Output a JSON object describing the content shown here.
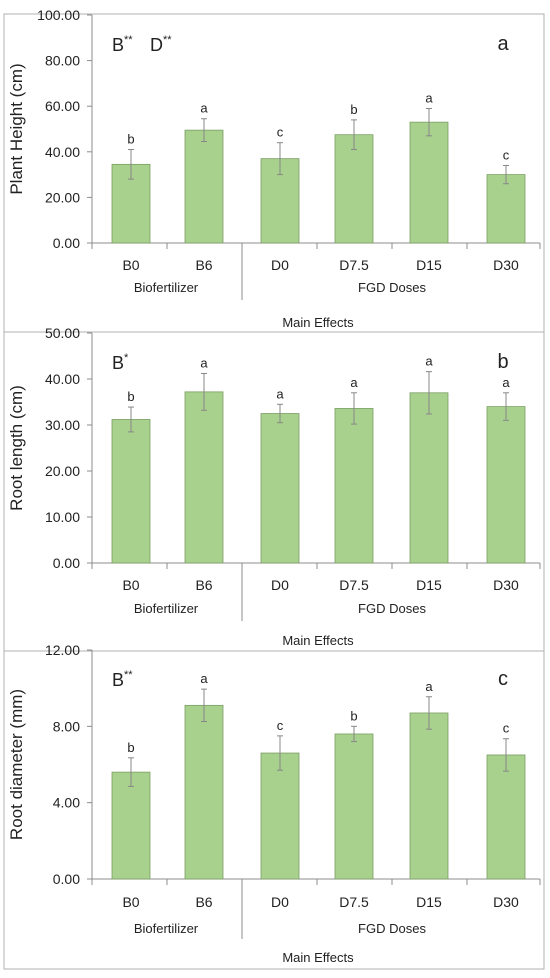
{
  "chart_data": [
    {
      "type": "bar",
      "panel_letter": "a",
      "ylabel": "Plant Height (cm)",
      "xlabel": "Main Effects",
      "group_labels": [
        "Biofertilizer",
        "FGD Doses"
      ],
      "significance": [
        {
          "letter": "B",
          "stars": "**"
        },
        {
          "letter": "D",
          "stars": "**"
        }
      ],
      "ylim": [
        0,
        100
      ],
      "y_ticks": [
        "0.00",
        "20.00",
        "40.00",
        "60.00",
        "80.00",
        "100.00"
      ],
      "categories": [
        "B0",
        "B6",
        "D0",
        "D7.5",
        "D15",
        "D30"
      ],
      "values": [
        34.5,
        49.5,
        37.0,
        47.5,
        53.0,
        30.0
      ],
      "errors": [
        6.5,
        5.0,
        7.0,
        6.5,
        6.0,
        4.0
      ],
      "letters": [
        "b",
        "a",
        "c",
        "b",
        "a",
        "c"
      ],
      "bar_color": "#a9d18e",
      "grid": false
    },
    {
      "type": "bar",
      "panel_letter": "b",
      "ylabel": "Root length (cm)",
      "xlabel": "Main Effects",
      "group_labels": [
        "Biofertilizer",
        "FGD Doses"
      ],
      "significance": [
        {
          "letter": "B",
          "stars": "*"
        }
      ],
      "ylim": [
        0,
        50
      ],
      "y_ticks": [
        "0.00",
        "10.00",
        "20.00",
        "30.00",
        "40.00",
        "50.00"
      ],
      "categories": [
        "B0",
        "B6",
        "D0",
        "D7.5",
        "D15",
        "D30"
      ],
      "values": [
        31.2,
        37.2,
        32.5,
        33.6,
        37.0,
        34.0
      ],
      "errors": [
        2.7,
        4.0,
        2.0,
        3.4,
        4.6,
        3.0
      ],
      "letters": [
        "b",
        "a",
        "a",
        "a",
        "a",
        "a"
      ],
      "bar_color": "#a9d18e",
      "grid": false
    },
    {
      "type": "bar",
      "panel_letter": "c",
      "ylabel": "Root diameter (mm)",
      "xlabel": "Main Effects",
      "group_labels": [
        "Biofertilizer",
        "FGD Doses"
      ],
      "significance": [
        {
          "letter": "B",
          "stars": "**"
        }
      ],
      "ylim": [
        0,
        12
      ],
      "y_ticks": [
        "0.00",
        "4.00",
        "8.00",
        "12.00"
      ],
      "categories": [
        "B0",
        "B6",
        "D0",
        "D7.5",
        "D15",
        "D30"
      ],
      "values": [
        5.6,
        9.1,
        6.6,
        7.6,
        8.7,
        6.5
      ],
      "errors": [
        0.75,
        0.85,
        0.9,
        0.4,
        0.85,
        0.85
      ],
      "letters": [
        "b",
        "a",
        "c",
        "b",
        "a",
        "c"
      ],
      "bar_color": "#a9d18e",
      "grid": false
    }
  ]
}
